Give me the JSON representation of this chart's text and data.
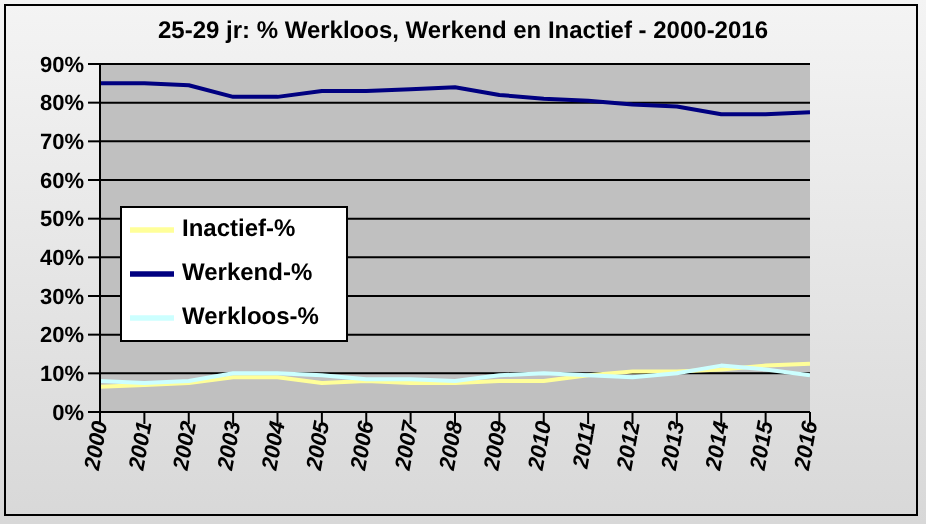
{
  "chart_data": {
    "type": "line",
    "title": "25-29 jr: % Werkloos, Werkend en Inactief - 2000-2016",
    "x": [
      2000,
      2001,
      2002,
      2003,
      2004,
      2005,
      2006,
      2007,
      2008,
      2009,
      2010,
      2011,
      2012,
      2013,
      2014,
      2015,
      2016
    ],
    "series": [
      {
        "name": "Inactief-%",
        "color": "#ffff99",
        "values": [
          6.5,
          7,
          7.5,
          9,
          9,
          7.5,
          8,
          7.5,
          7.5,
          8,
          8,
          9.5,
          10.5,
          10.5,
          11,
          12,
          12.5
        ]
      },
      {
        "name": "Werkend-%",
        "color": "#000080",
        "values": [
          85,
          85,
          84.5,
          81.5,
          81.5,
          83,
          83,
          83.5,
          84,
          82,
          81,
          80.5,
          79.5,
          79,
          77,
          77,
          77.5
        ]
      },
      {
        "name": "Werkloos-%",
        "color": "#ccffff",
        "values": [
          8,
          7.5,
          8,
          10,
          10,
          9.5,
          8.5,
          8.5,
          8,
          9.5,
          10,
          9.5,
          9,
          10,
          12,
          11,
          9.5
        ]
      }
    ],
    "xlim": [
      2000,
      2016
    ],
    "xticks": [
      2000,
      2001,
      2002,
      2003,
      2004,
      2005,
      2006,
      2007,
      2008,
      2009,
      2010,
      2011,
      2012,
      2013,
      2014,
      2015,
      2016
    ],
    "ylim": [
      0,
      90
    ],
    "yticks": [
      {
        "value": 0,
        "label": "0%"
      },
      {
        "value": 10,
        "label": "10%"
      },
      {
        "value": 20,
        "label": "20%"
      },
      {
        "value": 30,
        "label": "30%"
      },
      {
        "value": 40,
        "label": "40%"
      },
      {
        "value": 50,
        "label": "50%"
      },
      {
        "value": 60,
        "label": "60%"
      },
      {
        "value": 70,
        "label": "70%"
      },
      {
        "value": 80,
        "label": "80%"
      },
      {
        "value": 90,
        "label": "90%"
      }
    ],
    "grid": "y",
    "legend": "left",
    "marker": "none",
    "line_style": "solid"
  }
}
